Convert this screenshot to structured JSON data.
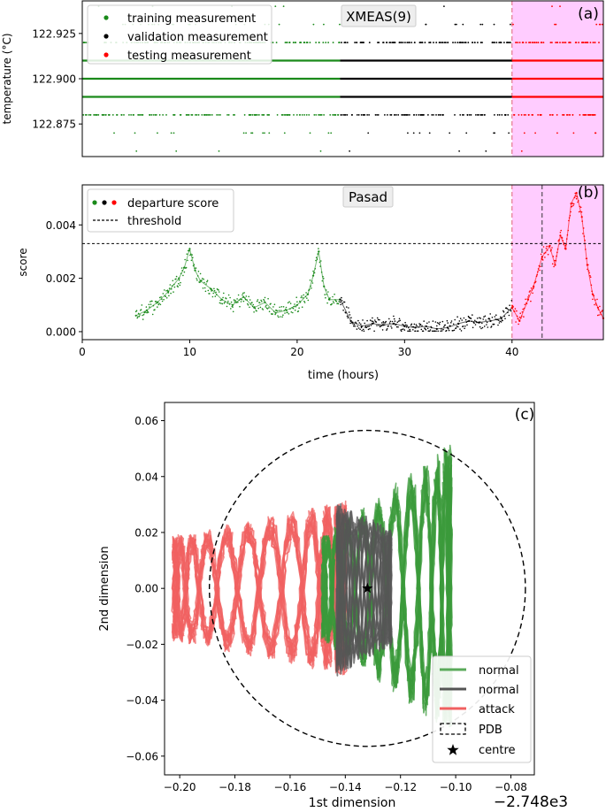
{
  "chart_data": [
    {
      "id": "a",
      "type": "scatter",
      "panel_label": "(a)",
      "title": "XMEAS(9)",
      "xlabel": "",
      "ylabel": "temperature (°C)",
      "xlim": [
        0,
        48.5
      ],
      "ylim": [
        122.857,
        122.943
      ],
      "yticks": [
        "122.875",
        "122.900",
        "122.925"
      ],
      "ytick_values": [
        122.875,
        122.9,
        122.925
      ],
      "grid": false,
      "legend_position": "top-left",
      "shaded_region": {
        "x_start": 40,
        "x_end": 48.5,
        "color": "#ffccff"
      },
      "vline": {
        "x": 40,
        "color": "#e0607a",
        "style": "dashed"
      },
      "series": [
        {
          "name": "training measurement",
          "color": "#1a8a1a",
          "x_range": [
            0,
            24
          ]
        },
        {
          "name": "validation measurement",
          "color": "#000000",
          "x_range": [
            24,
            40
          ]
        },
        {
          "name": "testing measurement",
          "color": "#ff0000",
          "x_range": [
            40,
            48.5
          ]
        }
      ],
      "levels": [
        {
          "y": 122.92,
          "density": 0.55
        },
        {
          "y": 122.91,
          "density": 1.0
        },
        {
          "y": 122.9,
          "density": 1.0
        },
        {
          "y": 122.89,
          "density": 1.0
        },
        {
          "y": 122.88,
          "density": 0.5
        },
        {
          "y": 122.93,
          "density": 0.08
        },
        {
          "y": 122.87,
          "density": 0.06
        },
        {
          "y": 122.94,
          "density": 0.02
        },
        {
          "y": 122.86,
          "density": 0.015
        }
      ]
    },
    {
      "id": "b",
      "type": "line",
      "panel_label": "(b)",
      "title": "Pasad",
      "xlabel": "time (hours)",
      "ylabel": "score",
      "xlim": [
        0,
        48.5
      ],
      "ylim": [
        -0.0003,
        0.0055
      ],
      "xticks": [
        "0",
        "10",
        "20",
        "30",
        "40"
      ],
      "xtick_values": [
        0,
        10,
        20,
        30,
        40
      ],
      "yticks": [
        "0.000",
        "0.002",
        "0.004"
      ],
      "ytick_values": [
        0,
        0.002,
        0.004
      ],
      "grid": false,
      "legend_position": "top-left",
      "threshold": 0.0033,
      "alarm_time": 42.8,
      "shaded_region": {
        "x_start": 40,
        "x_end": 48.5,
        "color": "#ffccff"
      },
      "vline": {
        "x": 40,
        "color": "#e0607a",
        "style": "dashed"
      },
      "legend": [
        {
          "name": "departure score",
          "colors": [
            "#1a8a1a",
            "#000000",
            "#ff0000"
          ],
          "marker": "dots"
        },
        {
          "name": "threshold",
          "color": "#000000",
          "marker": "dashed"
        }
      ],
      "series": [
        {
          "name": "training",
          "color": "#1a8a1a",
          "x": [
            5,
            6,
            7,
            8,
            9,
            9.5,
            10,
            10.5,
            11,
            12,
            13,
            14,
            15,
            16,
            17,
            18,
            19,
            20,
            21,
            21.5,
            22,
            22.5,
            23,
            24
          ],
          "y": [
            0.0006,
            0.0008,
            0.0011,
            0.0015,
            0.002,
            0.0024,
            0.0031,
            0.0023,
            0.0019,
            0.0016,
            0.0012,
            0.001,
            0.0013,
            0.0009,
            0.0011,
            0.0007,
            0.0008,
            0.001,
            0.0014,
            0.0021,
            0.003,
            0.0017,
            0.0012,
            0.0012
          ]
        },
        {
          "name": "validation",
          "color": "#000000",
          "x": [
            24,
            25,
            26,
            27,
            28,
            29,
            30,
            31,
            32,
            33,
            34,
            35,
            36,
            37,
            38,
            39,
            40
          ],
          "y": [
            0.0012,
            0.0004,
            0.0002,
            0.0003,
            0.00025,
            0.0003,
            0.0002,
            0.00015,
            0.0002,
            0.0001,
            0.00015,
            0.0003,
            0.0004,
            0.00035,
            0.0004,
            0.0005,
            0.0009
          ]
        },
        {
          "name": "testing",
          "color": "#ff0000",
          "x": [
            40,
            40.7,
            41.5,
            42,
            42.8,
            43.5,
            44,
            44.5,
            45,
            45.5,
            46,
            46.5,
            47,
            47.5,
            48,
            48.5
          ],
          "y": [
            0.0009,
            0.0004,
            0.0012,
            0.0017,
            0.0028,
            0.0032,
            0.0025,
            0.0036,
            0.0031,
            0.0048,
            0.0052,
            0.0043,
            0.0025,
            0.0014,
            0.0009,
            0.0005
          ]
        }
      ]
    },
    {
      "id": "c",
      "type": "line",
      "panel_label": "(c)",
      "title": "",
      "xlabel": "1st dimension",
      "ylabel": "2nd dimension",
      "offset_text": "−2.748e3",
      "xlim": [
        -0.2055,
        -0.0715
      ],
      "ylim": [
        -0.0667,
        0.0665
      ],
      "xticks": [
        "−0.20",
        "−0.18",
        "−0.16",
        "−0.14",
        "−0.12",
        "−0.10",
        "−0.08"
      ],
      "xtick_values": [
        -0.2,
        -0.18,
        -0.16,
        -0.14,
        -0.12,
        -0.1,
        -0.08
      ],
      "yticks": [
        "−0.06",
        "−0.04",
        "−0.02",
        "0.00",
        "0.02",
        "0.04",
        "0.06"
      ],
      "ytick_values": [
        -0.06,
        -0.04,
        -0.02,
        0,
        0.02,
        0.04,
        0.06
      ],
      "grid": false,
      "legend_position": "bottom-right",
      "centre": [
        -0.132,
        0
      ],
      "pdb_radius": 0.0565,
      "series": [
        {
          "name": "normal",
          "color": "#3a9a3a",
          "x_range": [
            -0.148,
            -0.101
          ],
          "half_height": [
            0.018,
            0.05
          ]
        },
        {
          "name": "normal",
          "color": "#555555",
          "x_range": [
            -0.143,
            -0.123
          ],
          "half_height": [
            0.03,
            0.02
          ]
        },
        {
          "name": "attack",
          "color": "#f06060",
          "x_range": [
            -0.202,
            -0.139
          ],
          "half_height": [
            0.018,
            0.03
          ]
        }
      ],
      "legend": [
        {
          "name": "normal",
          "color": "#5aaa5a",
          "marker": "line"
        },
        {
          "name": "normal",
          "color": "#555555",
          "marker": "line"
        },
        {
          "name": "attack",
          "color": "#f06060",
          "marker": "line"
        },
        {
          "name": "PDB",
          "color": "#000000",
          "marker": "dashed-box"
        },
        {
          "name": "centre",
          "color": "#000000",
          "marker": "star"
        }
      ]
    }
  ]
}
